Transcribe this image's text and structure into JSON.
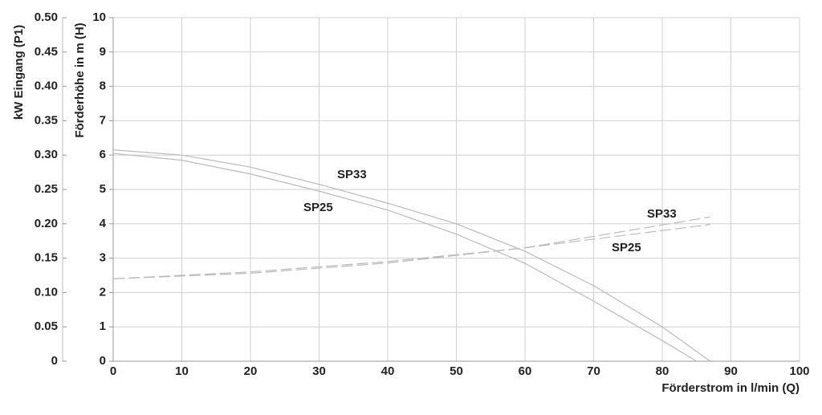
{
  "chart_data": {
    "type": "line",
    "xlabel": "Förderstrom in l/min (Q)",
    "ylabel": "Förderhöhe in m (H)",
    "y2label": "kW Eingang (P1)",
    "xlim": [
      0,
      100
    ],
    "xticks": [
      0,
      10,
      20,
      30,
      40,
      50,
      60,
      70,
      80,
      90,
      100
    ],
    "ylim": [
      0,
      10
    ],
    "yticks": [
      0,
      1,
      2,
      3,
      4,
      5,
      6,
      7,
      8,
      9,
      10
    ],
    "y2lim": [
      0,
      0.5
    ],
    "y2ticks": [
      0,
      0.05,
      {
        "value": 0.1,
        "label": "0.10"
      },
      0.15,
      {
        "value": 0.2,
        "label": "0.20"
      },
      0.25,
      {
        "value": 0.3,
        "label": "0.30"
      },
      0.35,
      {
        "value": 0.4,
        "label": "0.40"
      },
      0.45,
      {
        "value": 0.5,
        "label": "0.50"
      }
    ],
    "grid": true,
    "series": [
      {
        "name": "SP33",
        "color": "#bbbbbb",
        "x": [
          0,
          10,
          20,
          30,
          40,
          50,
          60,
          70,
          80,
          87
        ],
        "values": [
          6.15,
          6.0,
          5.65,
          5.15,
          4.6,
          4.0,
          3.2,
          2.2,
          1.0,
          0
        ]
      },
      {
        "name": "SP25",
        "color": "#bbbbbb",
        "x": [
          0,
          10,
          20,
          30,
          40,
          50,
          60,
          70,
          80,
          85
        ],
        "values": [
          6.05,
          5.85,
          5.45,
          4.95,
          4.4,
          3.7,
          2.85,
          1.75,
          0.6,
          0
        ]
      },
      {
        "name": "SP33",
        "color": "#bbbbbb",
        "dashed": true,
        "axis": "y2",
        "x": [
          0,
          20,
          40,
          60,
          87
        ],
        "values": [
          0.12,
          0.13,
          0.145,
          0.165,
          0.21
        ]
      },
      {
        "name": "SP25",
        "color": "#bbbbbb",
        "dashed": true,
        "axis": "y2",
        "x": [
          0,
          20,
          40,
          60,
          87
        ],
        "values": [
          0.12,
          0.128,
          0.143,
          0.165,
          0.199
        ]
      }
    ]
  }
}
